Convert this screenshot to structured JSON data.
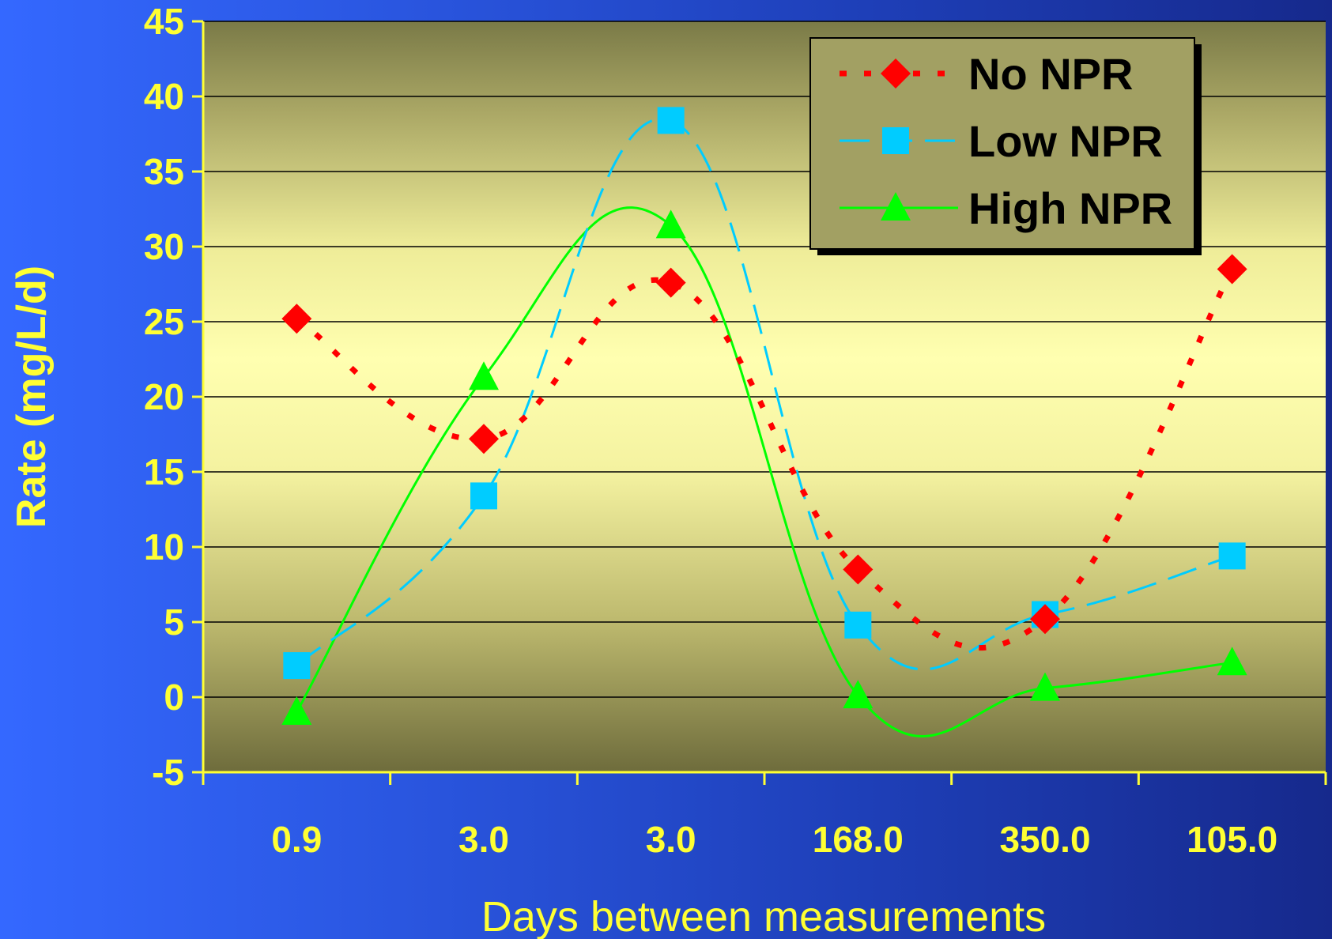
{
  "chart_data": {
    "type": "line",
    "title": "",
    "xlabel": "Days between measurements",
    "ylabel": "Rate (mg/L/d)",
    "categories": [
      "0.9",
      "3.0",
      "3.0",
      "168.0",
      "350.0",
      "105.0"
    ],
    "ylim": [
      -5,
      45
    ],
    "yticks": [
      45,
      40,
      35,
      30,
      25,
      20,
      15,
      10,
      5,
      0,
      -5
    ],
    "grid": true,
    "legend_position": "top-right",
    "series": [
      {
        "name": "No NPR",
        "values": [
          25.2,
          17.2,
          27.6,
          8.5,
          5.2,
          28.5
        ],
        "color": "#ff0000",
        "marker": "diamond",
        "line": "dotted"
      },
      {
        "name": "Low NPR",
        "values": [
          2.1,
          13.4,
          38.4,
          4.8,
          5.5,
          9.4
        ],
        "color": "#00ccff",
        "marker": "square",
        "line": "dashed"
      },
      {
        "name": "High NPR",
        "values": [
          -1.0,
          21.3,
          31.4,
          0.1,
          0.6,
          2.3
        ],
        "color": "#00ff00",
        "marker": "triangle",
        "line": "solid"
      }
    ]
  },
  "colors": {
    "axis_text": "#ffff33",
    "plot_edge": "#80804a",
    "plot_center": "#ffffa8"
  }
}
